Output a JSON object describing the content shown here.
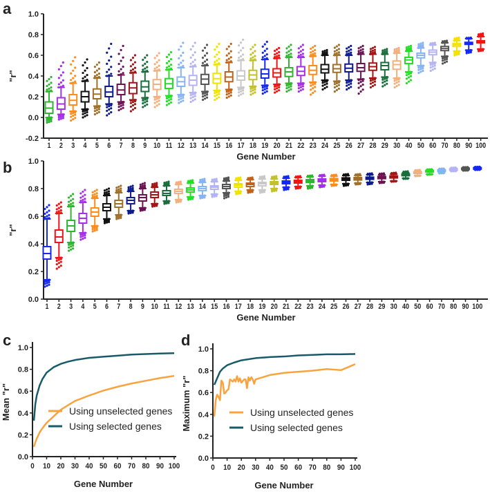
{
  "palette_a": [
    "#2fb52f",
    "#a52ee8",
    "#ff8c1a",
    "#111111",
    "#a0702a",
    "#0d1a8c",
    "#6b1252",
    "#a51414",
    "#1a6e3e",
    "#f2b07e",
    "#22e022",
    "#86b4f2",
    "#b4b4f4",
    "#555555",
    "#f2e200",
    "#c2621a",
    "#c8c8c8",
    "#c2c228",
    "#1428f0",
    "#f01414",
    "#2fb52f",
    "#a52ee8",
    "#ff8c1a",
    "#111111",
    "#a0702a",
    "#0d1a8c",
    "#6b1252",
    "#a51414",
    "#1a6e3e",
    "#f2b07e",
    "#22e022",
    "#86b4f2",
    "#b4b4f4",
    "#555555",
    "#f2e200",
    "#1428f0",
    "#f01414"
  ],
  "palette_b": [
    "#1428f0",
    "#f01414",
    "#2fb52f",
    "#a52ee8",
    "#ff8c1a",
    "#111111",
    "#a0702a",
    "#0d1a8c",
    "#6b1252",
    "#a51414",
    "#1a6e3e",
    "#f2b07e",
    "#22e022",
    "#86b4f2",
    "#b4b4f4",
    "#555555",
    "#f2e200",
    "#c2621a",
    "#c8c8c8",
    "#c2c228",
    "#1428f0",
    "#f01414",
    "#2fb52f",
    "#a52ee8",
    "#ff8c1a",
    "#111111",
    "#a0702a",
    "#0d1a8c",
    "#6b1252",
    "#a51414",
    "#1a6e3e",
    "#f2b07e",
    "#22e022",
    "#86b4f2",
    "#b4b4f4",
    "#555555",
    "#1428f0"
  ],
  "chart_data": [
    {
      "panel": "a",
      "type": "box",
      "xlabel": "Gene Number",
      "ylabel": "\"r\"",
      "ylim": [
        -0.2,
        1.0
      ],
      "yticks": [
        "-0.2",
        "0.0",
        "0.2",
        "0.4",
        "0.6",
        "0.8",
        "1.0"
      ],
      "categories": [
        "1",
        "2",
        "3",
        "4",
        "5",
        "6",
        "7",
        "8",
        "9",
        "10",
        "11",
        "12",
        "13",
        "14",
        "15",
        "16",
        "17",
        "18",
        "19",
        "20",
        "21",
        "22",
        "23",
        "24",
        "25",
        "26",
        "27",
        "28",
        "29",
        "30",
        "40",
        "50",
        "60",
        "70",
        "80",
        "90",
        "100"
      ],
      "box_format": [
        "min",
        "whisker_low",
        "q1",
        "median",
        "q3",
        "whisker_high",
        "max"
      ],
      "boxes": [
        [
          -0.05,
          0.0,
          0.04,
          0.09,
          0.15,
          0.25,
          0.39
        ],
        [
          -0.02,
          0.03,
          0.08,
          0.13,
          0.19,
          0.29,
          0.53
        ],
        [
          -0.03,
          0.06,
          0.12,
          0.165,
          0.22,
          0.33,
          0.58
        ],
        [
          0.0,
          0.08,
          0.15,
          0.2,
          0.25,
          0.35,
          0.56
        ],
        [
          0.03,
          0.11,
          0.18,
          0.225,
          0.275,
          0.38,
          0.53
        ],
        [
          0.02,
          0.13,
          0.2,
          0.245,
          0.3,
          0.4,
          0.71
        ],
        [
          0.07,
          0.15,
          0.22,
          0.265,
          0.32,
          0.41,
          0.69
        ],
        [
          0.06,
          0.17,
          0.23,
          0.285,
          0.335,
          0.43,
          0.6
        ],
        [
          0.1,
          0.19,
          0.25,
          0.295,
          0.35,
          0.44,
          0.6
        ],
        [
          0.1,
          0.2,
          0.27,
          0.32,
          0.365,
          0.45,
          0.62
        ],
        [
          0.12,
          0.21,
          0.28,
          0.325,
          0.375,
          0.46,
          0.63
        ],
        [
          0.14,
          0.22,
          0.3,
          0.345,
          0.39,
          0.48,
          0.72
        ],
        [
          0.15,
          0.24,
          0.31,
          0.36,
          0.405,
          0.49,
          0.72
        ],
        [
          0.17,
          0.25,
          0.32,
          0.37,
          0.415,
          0.5,
          0.7
        ],
        [
          0.17,
          0.26,
          0.33,
          0.375,
          0.425,
          0.51,
          0.71
        ],
        [
          0.19,
          0.27,
          0.345,
          0.39,
          0.44,
          0.53,
          0.71
        ],
        [
          0.21,
          0.29,
          0.36,
          0.4,
          0.45,
          0.55,
          0.75
        ],
        [
          0.22,
          0.3,
          0.365,
          0.41,
          0.455,
          0.55,
          0.7
        ],
        [
          0.23,
          0.31,
          0.38,
          0.42,
          0.465,
          0.56,
          0.73
        ],
        [
          0.24,
          0.32,
          0.39,
          0.43,
          0.47,
          0.57,
          0.67
        ],
        [
          0.25,
          0.33,
          0.395,
          0.44,
          0.48,
          0.58,
          0.7
        ],
        [
          0.25,
          0.33,
          0.405,
          0.445,
          0.49,
          0.58,
          0.7
        ],
        [
          0.22,
          0.34,
          0.415,
          0.455,
          0.5,
          0.59,
          0.69
        ],
        [
          0.27,
          0.36,
          0.43,
          0.465,
          0.51,
          0.6,
          0.65
        ],
        [
          0.25,
          0.35,
          0.435,
          0.47,
          0.51,
          0.6,
          0.7
        ],
        [
          0.27,
          0.36,
          0.44,
          0.475,
          0.515,
          0.6,
          0.69
        ],
        [
          0.23,
          0.37,
          0.445,
          0.48,
          0.52,
          0.61,
          0.69
        ],
        [
          0.29,
          0.38,
          0.455,
          0.49,
          0.525,
          0.61,
          0.68
        ],
        [
          0.3,
          0.39,
          0.46,
          0.5,
          0.53,
          0.61,
          0.66
        ],
        [
          0.29,
          0.38,
          0.465,
          0.51,
          0.545,
          0.62,
          0.67
        ],
        [
          0.33,
          0.44,
          0.52,
          0.555,
          0.58,
          0.64,
          0.69
        ],
        [
          0.43,
          0.5,
          0.575,
          0.6,
          0.62,
          0.67,
          0.72
        ],
        [
          0.45,
          0.53,
          0.605,
          0.63,
          0.65,
          0.7,
          0.72
        ],
        [
          0.52,
          0.59,
          0.645,
          0.665,
          0.685,
          0.72,
          0.74
        ],
        [
          0.6,
          0.64,
          0.685,
          0.7,
          0.715,
          0.74,
          0.77
        ],
        [
          0.62,
          0.65,
          0.705,
          0.715,
          0.725,
          0.76,
          0.77
        ],
        [
          0.64,
          0.66,
          0.72,
          0.73,
          0.74,
          0.78,
          0.81
        ]
      ]
    },
    {
      "panel": "b",
      "type": "box",
      "xlabel": "Gene Number",
      "ylabel": "\"r\"",
      "ylim": [
        0.0,
        1.0
      ],
      "yticks": [
        "0.0",
        "0.2",
        "0.4",
        "0.6",
        "0.8",
        "1.0"
      ],
      "categories": [
        "1",
        "2",
        "3",
        "4",
        "5",
        "6",
        "7",
        "8",
        "9",
        "10",
        "11",
        "12",
        "13",
        "14",
        "15",
        "16",
        "17",
        "18",
        "19",
        "20",
        "21",
        "22",
        "23",
        "24",
        "25",
        "26",
        "27",
        "28",
        "29",
        "30",
        "40",
        "50",
        "60",
        "70",
        "80",
        "90",
        "100"
      ],
      "box_format": [
        "min",
        "whisker_low",
        "q1",
        "median",
        "q3",
        "whisker_high",
        "max"
      ],
      "boxes": [
        [
          0.09,
          0.14,
          0.29,
          0.33,
          0.38,
          0.58,
          0.68
        ],
        [
          0.22,
          0.3,
          0.41,
          0.45,
          0.5,
          0.62,
          0.7
        ],
        [
          0.35,
          0.41,
          0.49,
          0.53,
          0.57,
          0.67,
          0.76
        ],
        [
          0.43,
          0.48,
          0.55,
          0.585,
          0.62,
          0.7,
          0.79
        ],
        [
          0.49,
          0.53,
          0.6,
          0.63,
          0.66,
          0.73,
          0.79
        ],
        [
          0.55,
          0.58,
          0.64,
          0.665,
          0.69,
          0.75,
          0.8
        ],
        [
          0.58,
          0.61,
          0.665,
          0.69,
          0.715,
          0.77,
          0.82
        ],
        [
          0.62,
          0.64,
          0.69,
          0.715,
          0.735,
          0.78,
          0.82
        ],
        [
          0.64,
          0.66,
          0.71,
          0.735,
          0.755,
          0.8,
          0.84
        ],
        [
          0.67,
          0.69,
          0.735,
          0.755,
          0.775,
          0.81,
          0.84
        ],
        [
          0.69,
          0.71,
          0.75,
          0.765,
          0.785,
          0.82,
          0.85
        ],
        [
          0.7,
          0.72,
          0.765,
          0.78,
          0.795,
          0.83,
          0.85
        ],
        [
          0.72,
          0.74,
          0.775,
          0.79,
          0.805,
          0.84,
          0.86
        ],
        [
          0.73,
          0.75,
          0.785,
          0.8,
          0.815,
          0.845,
          0.87
        ],
        [
          0.74,
          0.76,
          0.795,
          0.81,
          0.82,
          0.85,
          0.87
        ],
        [
          0.73,
          0.77,
          0.8,
          0.815,
          0.83,
          0.855,
          0.88
        ],
        [
          0.76,
          0.78,
          0.81,
          0.825,
          0.835,
          0.86,
          0.88
        ],
        [
          0.77,
          0.79,
          0.815,
          0.83,
          0.84,
          0.865,
          0.88
        ],
        [
          0.77,
          0.79,
          0.82,
          0.835,
          0.845,
          0.87,
          0.89
        ],
        [
          0.78,
          0.8,
          0.83,
          0.84,
          0.85,
          0.87,
          0.89
        ],
        [
          0.79,
          0.81,
          0.835,
          0.845,
          0.855,
          0.875,
          0.89
        ],
        [
          0.8,
          0.815,
          0.84,
          0.85,
          0.86,
          0.88,
          0.89
        ],
        [
          0.8,
          0.82,
          0.845,
          0.855,
          0.865,
          0.885,
          0.895
        ],
        [
          0.81,
          0.825,
          0.85,
          0.86,
          0.87,
          0.89,
          0.9
        ],
        [
          0.82,
          0.83,
          0.855,
          0.865,
          0.873,
          0.89,
          0.9
        ],
        [
          0.82,
          0.835,
          0.86,
          0.87,
          0.878,
          0.895,
          0.905
        ],
        [
          0.83,
          0.84,
          0.862,
          0.87,
          0.88,
          0.895,
          0.905
        ],
        [
          0.83,
          0.845,
          0.867,
          0.875,
          0.883,
          0.9,
          0.91
        ],
        [
          0.84,
          0.85,
          0.872,
          0.88,
          0.888,
          0.9,
          0.91
        ],
        [
          0.85,
          0.855,
          0.877,
          0.885,
          0.892,
          0.905,
          0.915
        ],
        [
          0.87,
          0.875,
          0.893,
          0.9,
          0.906,
          0.915,
          0.925
        ],
        [
          0.89,
          0.895,
          0.91,
          0.915,
          0.92,
          0.928,
          0.935
        ],
        [
          0.9,
          0.905,
          0.92,
          0.925,
          0.93,
          0.936,
          0.94
        ],
        [
          0.91,
          0.915,
          0.926,
          0.93,
          0.935,
          0.94,
          0.945
        ],
        [
          0.925,
          0.928,
          0.937,
          0.94,
          0.943,
          0.948,
          0.952
        ],
        [
          0.93,
          0.933,
          0.942,
          0.945,
          0.948,
          0.952,
          0.956
        ],
        [
          0.935,
          0.938,
          0.945,
          0.948,
          0.951,
          0.955,
          0.958
        ]
      ]
    },
    {
      "panel": "c",
      "type": "line",
      "xlabel": "Gene Number",
      "ylabel": "Mean \"r\"",
      "xlim": [
        0,
        100
      ],
      "ylim": [
        0,
        1.0
      ],
      "xticks": [
        "0",
        "10",
        "20",
        "30",
        "40",
        "50",
        "60",
        "70",
        "80",
        "90",
        "100"
      ],
      "yticks": [
        "0.0",
        "0.2",
        "0.4",
        "0.6",
        "0.8",
        "1.0"
      ],
      "legend_position": "bottom-center",
      "series": [
        {
          "name": "Using unselected genes",
          "color": "#f9a33f",
          "x": [
            1,
            2,
            3,
            5,
            7,
            10,
            15,
            20,
            25,
            30,
            40,
            50,
            60,
            70,
            80,
            90,
            100
          ],
          "y": [
            0.09,
            0.13,
            0.165,
            0.22,
            0.26,
            0.31,
            0.37,
            0.43,
            0.47,
            0.51,
            0.56,
            0.605,
            0.64,
            0.67,
            0.695,
            0.72,
            0.74
          ]
        },
        {
          "name": "Using selected genes",
          "color": "#175a68",
          "x": [
            1,
            2,
            3,
            5,
            7,
            10,
            15,
            20,
            25,
            30,
            40,
            50,
            60,
            70,
            80,
            90,
            100
          ],
          "y": [
            0.33,
            0.48,
            0.56,
            0.65,
            0.71,
            0.77,
            0.82,
            0.85,
            0.87,
            0.885,
            0.905,
            0.915,
            0.925,
            0.935,
            0.94,
            0.945,
            0.948
          ]
        }
      ]
    },
    {
      "panel": "d",
      "type": "line",
      "xlabel": "Gene Number",
      "ylabel": "Maximum \"r\"",
      "xlim": [
        0,
        100
      ],
      "ylim": [
        0,
        1.0
      ],
      "xticks": [
        "0",
        "10",
        "20",
        "30",
        "40",
        "50",
        "60",
        "70",
        "80",
        "90",
        "100"
      ],
      "yticks": [
        "0.0",
        "0.2",
        "0.4",
        "0.6",
        "0.8",
        "1.0"
      ],
      "legend_position": "bottom-center",
      "series": [
        {
          "name": "Using unselected genes",
          "color": "#f9a33f",
          "x": [
            1,
            2,
            3,
            4,
            5,
            6,
            7,
            8,
            9,
            10,
            11,
            12,
            13,
            14,
            15,
            16,
            17,
            18,
            19,
            20,
            22,
            23,
            24,
            25,
            26,
            27,
            28,
            29,
            30,
            40,
            50,
            60,
            70,
            80,
            90,
            100
          ],
          "y": [
            0.38,
            0.53,
            0.58,
            0.56,
            0.53,
            0.71,
            0.69,
            0.59,
            0.6,
            0.62,
            0.63,
            0.72,
            0.71,
            0.7,
            0.72,
            0.7,
            0.75,
            0.7,
            0.73,
            0.69,
            0.72,
            0.72,
            0.64,
            0.74,
            0.71,
            0.74,
            0.72,
            0.68,
            0.72,
            0.76,
            0.78,
            0.79,
            0.8,
            0.815,
            0.805,
            0.86
          ]
        },
        {
          "name": "Using selected genes",
          "color": "#175a68",
          "x": [
            1,
            3,
            5,
            7,
            10,
            15,
            20,
            30,
            40,
            50,
            60,
            70,
            80,
            90,
            100
          ],
          "y": [
            0.67,
            0.73,
            0.79,
            0.82,
            0.85,
            0.875,
            0.895,
            0.915,
            0.925,
            0.93,
            0.94,
            0.945,
            0.95,
            0.95,
            0.953
          ]
        }
      ]
    }
  ]
}
